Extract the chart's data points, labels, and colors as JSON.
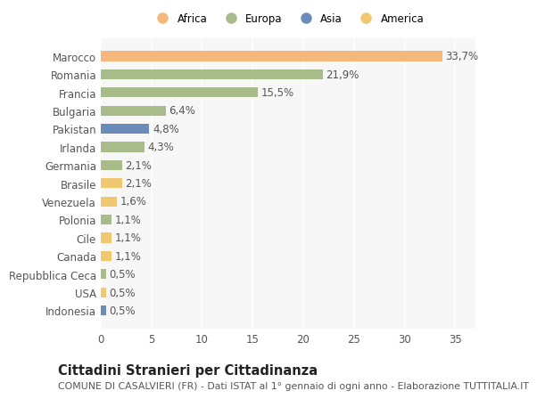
{
  "categories": [
    "Indonesia",
    "USA",
    "Repubblica Ceca",
    "Canada",
    "Cile",
    "Polonia",
    "Venezuela",
    "Brasile",
    "Germania",
    "Irlanda",
    "Pakistan",
    "Bulgaria",
    "Francia",
    "Romania",
    "Marocco"
  ],
  "values": [
    0.5,
    0.5,
    0.5,
    1.1,
    1.1,
    1.1,
    1.6,
    2.1,
    2.1,
    4.3,
    4.8,
    6.4,
    15.5,
    21.9,
    33.7
  ],
  "colors": [
    "#6b8cba",
    "#f0c870",
    "#a8bc8a",
    "#f0c870",
    "#f0c870",
    "#a8bc8a",
    "#f0c870",
    "#f0c870",
    "#a8bc8a",
    "#a8bc8a",
    "#6b8cba",
    "#a8bc8a",
    "#a8bc8a",
    "#a8bc8a",
    "#f5b87a"
  ],
  "continents": [
    "Asia",
    "America",
    "Europa",
    "America",
    "America",
    "Europa",
    "America",
    "America",
    "Europa",
    "Europa",
    "Asia",
    "Europa",
    "Europa",
    "Europa",
    "Africa"
  ],
  "legend_labels": [
    "Africa",
    "Europa",
    "Asia",
    "America"
  ],
  "legend_colors": [
    "#f5b87a",
    "#a8bc8a",
    "#6b8cba",
    "#f0c870"
  ],
  "title": "Cittadini Stranieri per Cittadinanza",
  "subtitle": "COMUNE DI CASALVIERI (FR) - Dati ISTAT al 1° gennaio di ogni anno - Elaborazione TUTTITALIA.IT",
  "xlim": [
    0,
    37
  ],
  "xticks": [
    0,
    5,
    10,
    15,
    20,
    25,
    30,
    35
  ],
  "background_color": "#ffffff",
  "plot_bg_color": "#f7f7f7",
  "grid_color": "#ffffff",
  "bar_height": 0.55,
  "label_fontsize": 8.5,
  "tick_fontsize": 8.5,
  "title_fontsize": 10.5,
  "subtitle_fontsize": 7.8,
  "text_color": "#555555"
}
